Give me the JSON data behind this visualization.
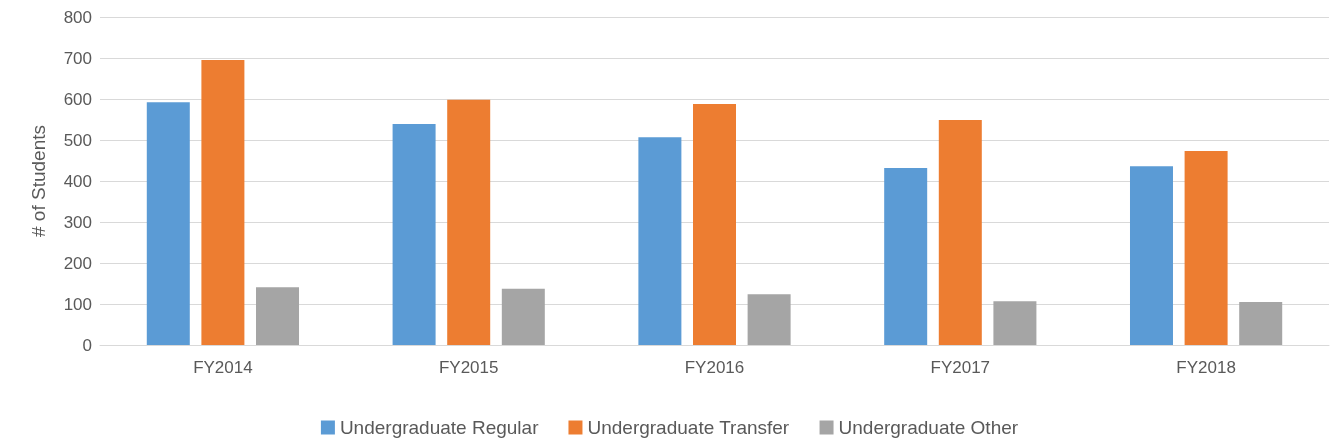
{
  "chart_data": {
    "type": "bar",
    "ylabel": "# of Students",
    "categories": [
      "FY2014",
      "FY2015",
      "FY2016",
      "FY2017",
      "FY2018"
    ],
    "series": [
      {
        "name": "Undergraduate Regular",
        "color": "#5b9bd5",
        "values": [
          592,
          539,
          507,
          432,
          436
        ]
      },
      {
        "name": "Undergraduate Transfer",
        "color": "#ed7d31",
        "values": [
          695,
          598,
          588,
          549,
          473
        ]
      },
      {
        "name": "Undergraduate Other",
        "color": "#a5a5a5",
        "values": [
          141,
          137,
          124,
          107,
          105
        ]
      }
    ],
    "ylim": [
      0,
      800
    ],
    "yticks": [
      0,
      100,
      200,
      300,
      400,
      500,
      600,
      700,
      800
    ],
    "grid": "y",
    "legend": "bottom"
  }
}
